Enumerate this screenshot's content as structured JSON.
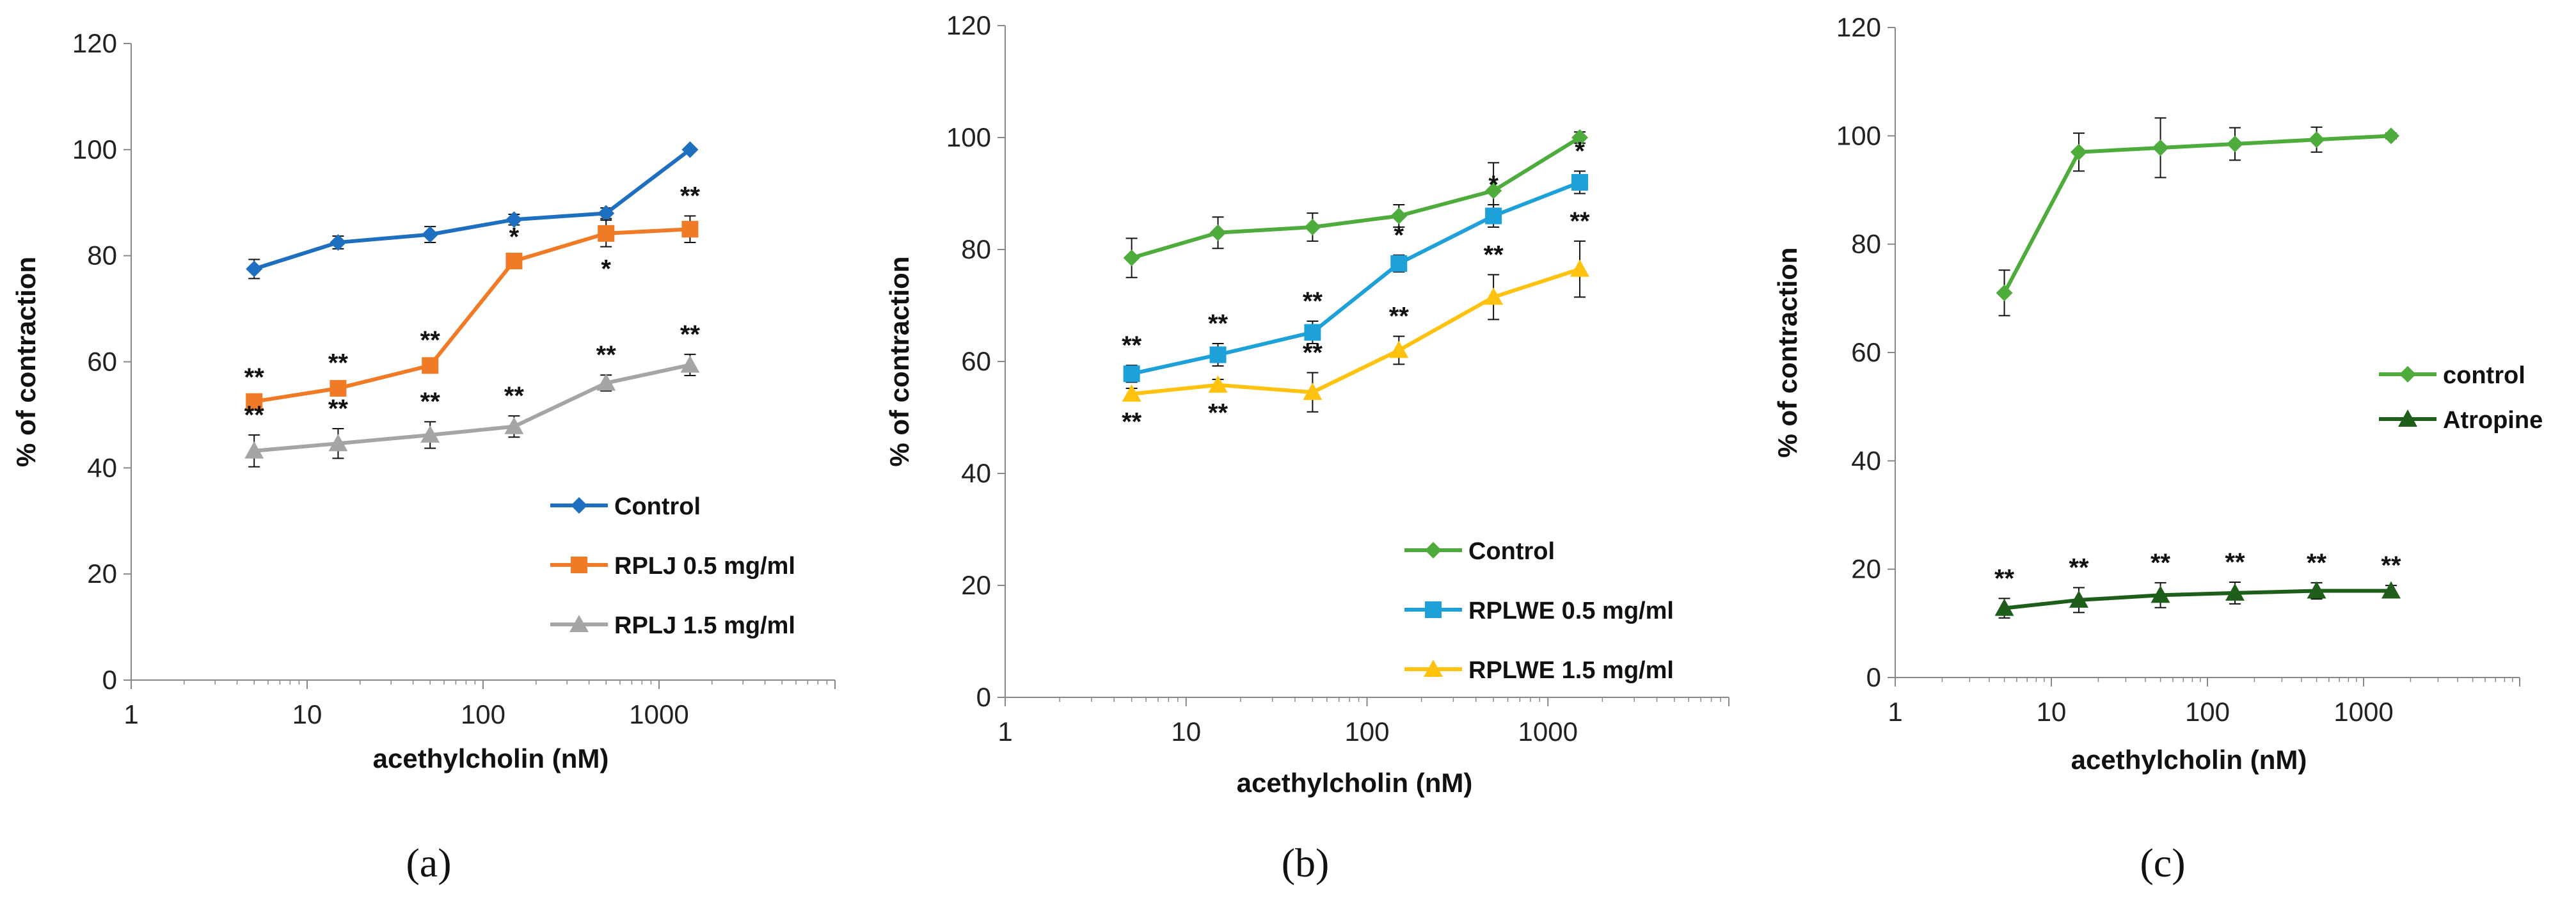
{
  "chart_data": [
    {
      "type": "line",
      "panel_label": "(a)",
      "xlabel": "acethylcholin (nM)",
      "ylabel": "% of contraction",
      "xscale": "log",
      "xlim": [
        1,
        10000
      ],
      "ylim": [
        0,
        120
      ],
      "xticks": [
        1,
        10,
        100,
        1000
      ],
      "xtick_labels": [
        "1",
        "10",
        "100",
        "1000"
      ],
      "yticks": [
        0,
        20,
        40,
        60,
        80,
        100,
        120
      ],
      "ytick_labels": [
        "0",
        "20",
        "40",
        "60",
        "80",
        "100",
        "120"
      ],
      "legend_position": "lower-right",
      "series": [
        {
          "name": "Control",
          "color": "#1f6fc0",
          "marker": "diamond",
          "x": [
            5,
            15,
            50,
            150,
            500,
            1500
          ],
          "y": [
            77.5,
            82.5,
            84,
            86.8,
            88,
            100
          ],
          "err": [
            1.8,
            1.2,
            1.5,
            1,
            1,
            0
          ],
          "sig": [
            "",
            "",
            "",
            "",
            "",
            ""
          ]
        },
        {
          "name": "RPLJ 0.5 mg/ml",
          "color": "#f07a25",
          "marker": "square",
          "x": [
            5,
            15,
            50,
            150,
            500,
            1500
          ],
          "y": [
            52.5,
            55,
            59.3,
            79,
            84.2,
            85
          ],
          "err": [
            0.8,
            1,
            1,
            0.8,
            2.5,
            2.5
          ],
          "sig": [
            "**",
            "**",
            "**",
            "*",
            "*",
            "**"
          ],
          "sig_pos": [
            "above",
            "above",
            "above",
            "above",
            "below",
            "above"
          ]
        },
        {
          "name": "RPLJ 1.5 mg/ml",
          "color": "#a5a5a5",
          "marker": "triangle",
          "x": [
            5,
            15,
            50,
            150,
            500,
            1500
          ],
          "y": [
            43.2,
            44.6,
            46.2,
            47.8,
            56,
            59.4
          ],
          "err": [
            3,
            2.8,
            2.5,
            2,
            1.5,
            2
          ],
          "sig": [
            "**",
            "**",
            "**",
            "**",
            "**",
            "**"
          ],
          "sig_pos": [
            "above",
            "above",
            "above",
            "above",
            "above",
            "above"
          ]
        }
      ]
    },
    {
      "type": "line",
      "panel_label": "(b)",
      "xlabel": "acethylcholin (nM)",
      "ylabel": "% of contraction",
      "xscale": "log",
      "xlim": [
        1,
        10000
      ],
      "ylim": [
        0,
        120
      ],
      "xticks": [
        1,
        10,
        100,
        1000
      ],
      "xtick_labels": [
        "1",
        "10",
        "100",
        "1000"
      ],
      "yticks": [
        0,
        20,
        40,
        60,
        80,
        100,
        120
      ],
      "ytick_labels": [
        "0",
        "20",
        "40",
        "60",
        "80",
        "100",
        "120"
      ],
      "legend_position": "lower-right",
      "series": [
        {
          "name": "Control",
          "color": "#4eac3c",
          "marker": "diamond",
          "x": [
            5,
            15,
            50,
            150,
            500,
            1500
          ],
          "y": [
            78.5,
            83,
            84,
            86,
            90.5,
            100
          ],
          "err": [
            3.5,
            2.8,
            2.5,
            2,
            5,
            1
          ],
          "sig": [
            "",
            "",
            "",
            "",
            "",
            ""
          ]
        },
        {
          "name": "RPLWE 0.5 mg/ml",
          "color": "#1ea0d8",
          "marker": "square",
          "x": [
            5,
            15,
            50,
            150,
            500,
            1500
          ],
          "y": [
            57.8,
            61.2,
            65.2,
            77.5,
            86,
            92
          ],
          "err": [
            1.5,
            2,
            2,
            1.5,
            2,
            2
          ],
          "sig": [
            "**",
            "**",
            "**",
            "*",
            "*",
            "*"
          ],
          "sig_pos": [
            "above",
            "above",
            "above",
            "above",
            "above",
            "above"
          ]
        },
        {
          "name": "RPLWE 1.5 mg/ml",
          "color": "#ffc20e",
          "marker": "triangle",
          "x": [
            5,
            15,
            50,
            150,
            500,
            1500
          ],
          "y": [
            54.2,
            55.8,
            54.5,
            62,
            71.5,
            76.5
          ],
          "err": [
            1,
            1,
            3.5,
            2.5,
            4,
            5
          ],
          "sig": [
            "**",
            "**",
            "**",
            "**",
            "**",
            "**"
          ],
          "sig_pos": [
            "below",
            "below",
            "above",
            "above",
            "above",
            "above"
          ]
        }
      ]
    },
    {
      "type": "line",
      "panel_label": "(c)",
      "xlabel": "acethylcholin (nM)",
      "ylabel": "% of contraction",
      "xscale": "log",
      "xlim": [
        1,
        10000
      ],
      "ylim": [
        0,
        120
      ],
      "xticks": [
        1,
        10,
        100,
        1000
      ],
      "xtick_labels": [
        "1",
        "10",
        "100",
        "1000"
      ],
      "yticks": [
        0,
        20,
        40,
        60,
        80,
        100,
        120
      ],
      "ytick_labels": [
        "0",
        "20",
        "40",
        "60",
        "80",
        "100",
        "120"
      ],
      "legend_position": "right",
      "series": [
        {
          "name": "control",
          "color": "#4eac3c",
          "marker": "diamond",
          "x": [
            5,
            15,
            50,
            150,
            500,
            1500
          ],
          "y": [
            71,
            97,
            97.8,
            98.5,
            99.3,
            100
          ],
          "err": [
            4.2,
            3.5,
            5.5,
            3,
            2.3,
            0.5
          ],
          "sig": [
            "",
            "",
            "",
            "",
            "",
            ""
          ]
        },
        {
          "name": "Atropine",
          "color": "#1f5e1a",
          "marker": "triangle",
          "x": [
            5,
            15,
            50,
            150,
            500,
            1500
          ],
          "y": [
            12.8,
            14.3,
            15.2,
            15.6,
            16,
            16
          ],
          "err": [
            1.8,
            2.3,
            2.3,
            2,
            1.5,
            1
          ],
          "sig": [
            "**",
            "**",
            "**",
            "**",
            "**",
            "**"
          ],
          "sig_pos": [
            "above",
            "above",
            "above",
            "above",
            "above",
            "above"
          ]
        }
      ]
    }
  ]
}
